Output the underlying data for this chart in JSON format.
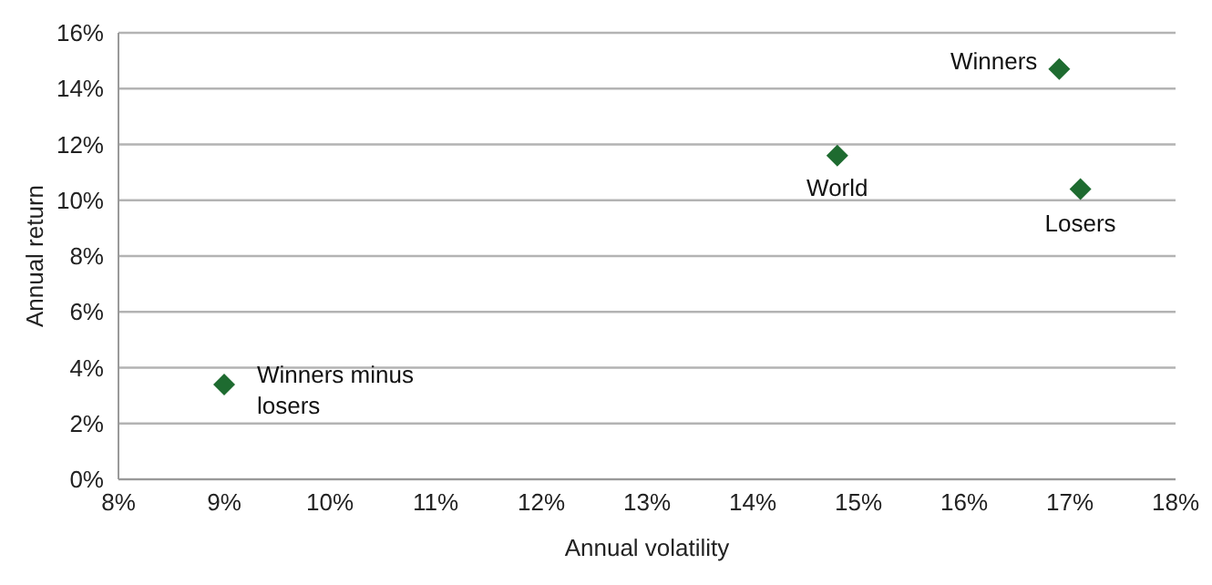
{
  "chart_data": {
    "type": "scatter",
    "xlabel": "Annual volatility",
    "ylabel": "Annual return",
    "x": [
      16.9,
      14.8,
      17.1,
      9.0
    ],
    "values": [
      14.7,
      11.6,
      10.4,
      3.4
    ],
    "color": "#1e6b30",
    "marker": "diamond",
    "grid": "y",
    "legend": false,
    "xlim": [
      8,
      18
    ],
    "xticks": [
      {
        "value": 8,
        "label": "8%"
      },
      {
        "value": 9,
        "label": "9%"
      },
      {
        "value": 10,
        "label": "10%"
      },
      {
        "value": 11,
        "label": "11%"
      },
      {
        "value": 12,
        "label": "12%"
      },
      {
        "value": 13,
        "label": "13%"
      },
      {
        "value": 14,
        "label": "14%"
      },
      {
        "value": 15,
        "label": "15%"
      },
      {
        "value": 16,
        "label": "16%"
      },
      {
        "value": 17,
        "label": "17%"
      },
      {
        "value": 18,
        "label": "18%"
      }
    ],
    "ylim": [
      0,
      16
    ],
    "yticks": [
      {
        "value": 0,
        "label": "0%"
      },
      {
        "value": 2,
        "label": "2%"
      },
      {
        "value": 4,
        "label": "4%"
      },
      {
        "value": 6,
        "label": "6%"
      },
      {
        "value": 8,
        "label": "8%"
      },
      {
        "value": 10,
        "label": "10%"
      },
      {
        "value": 12,
        "label": "12%"
      },
      {
        "value": 14,
        "label": "14%"
      },
      {
        "value": 16,
        "label": "16%"
      }
    ],
    "annotations": [
      {
        "text": "Winners",
        "x": 16.9,
        "y": 14.7
      },
      {
        "text": "World",
        "x": 14.8,
        "y": 11.6
      },
      {
        "text": "Losers",
        "x": 17.1,
        "y": 10.4
      },
      {
        "text": "Winners minus losers",
        "x": 9.0,
        "y": 3.4
      }
    ]
  }
}
